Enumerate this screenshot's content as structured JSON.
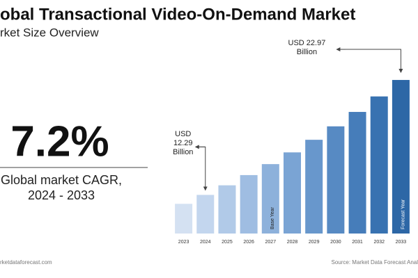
{
  "title": "obal Transactional Video-On-Demand Market",
  "subtitle": "rket Size Overview",
  "highlight": {
    "value": "7.2%",
    "label": "Global market CAGR, 2024 - 2033"
  },
  "footer": {
    "left": "rketdataforecast.com",
    "right": "Source: Market Data Forecast Anal"
  },
  "chart_data": {
    "type": "bar",
    "categories": [
      "2023",
      "2024",
      "2025",
      "2026",
      "2027",
      "2028",
      "2029",
      "2030",
      "2031",
      "2032",
      "2033"
    ],
    "values": [
      11.46,
      12.29,
      13.18,
      14.13,
      15.15,
      16.24,
      17.41,
      18.66,
      20.0,
      21.44,
      22.97
    ],
    "value_labels": [
      null,
      "USD 12.29 Billion",
      null,
      null,
      null,
      null,
      null,
      null,
      null,
      null,
      "USD 22.97 Billion"
    ],
    "colors": [
      "#d4e1f2",
      "#c3d6ee",
      "#b1cae8",
      "#9fbde2",
      "#8db1db",
      "#7aa4d4",
      "#6897cc",
      "#578ac3",
      "#467dba",
      "#3872b1",
      "#2d67a6"
    ],
    "ylim": [
      8.7,
      24.2
    ],
    "annotations": [
      {
        "text": "Base Year",
        "category": "2027"
      },
      {
        "text": "Forecast Year",
        "category": "2033"
      }
    ]
  }
}
